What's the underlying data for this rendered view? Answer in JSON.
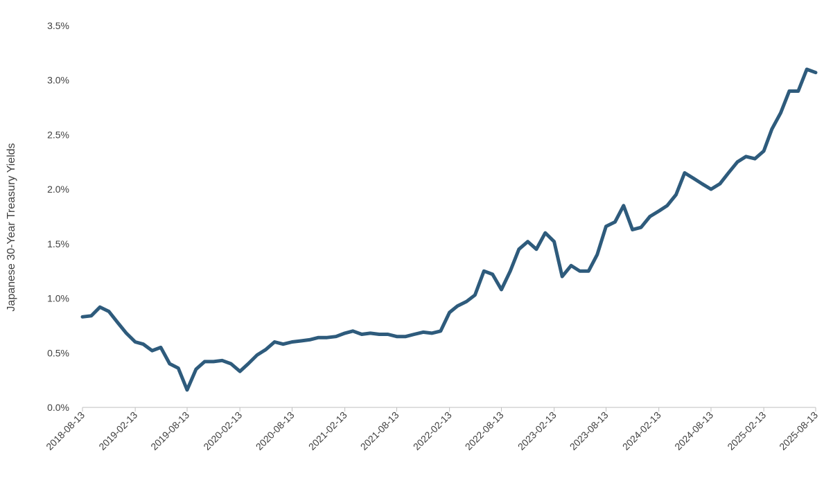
{
  "chart_data": {
    "type": "line",
    "title": "",
    "xlabel": "",
    "ylabel": "Japanese 30-Year Treasury Yields",
    "x_tick_labels": [
      "2018-08-13",
      "2019-02-13",
      "2019-08-13",
      "2020-02-13",
      "2020-08-13",
      "2021-02-13",
      "2021-08-13",
      "2022-02-13",
      "2022-08-13",
      "2023-02-13",
      "2023-08-13",
      "2024-02-13",
      "2024-08-13",
      "2025-02-13",
      "2025-08-13"
    ],
    "y_tick_labels": [
      "0.0%",
      "0.5%",
      "1.0%",
      "1.5%",
      "2.0%",
      "2.5%",
      "3.0%",
      "3.5%"
    ],
    "y_ticks": [
      0,
      0.5,
      1.0,
      1.5,
      2.0,
      2.5,
      3.0,
      3.5
    ],
    "ylim": [
      0,
      3.5
    ],
    "xlim": [
      "2018-08-13",
      "2025-08-13"
    ],
    "grid": false,
    "line_color": "#2e5b7c",
    "series": [
      {
        "x": [
          "2018-08-13",
          "2018-09-13",
          "2018-10-13",
          "2018-11-13",
          "2018-12-13",
          "2019-01-13",
          "2019-02-13",
          "2019-03-13",
          "2019-04-13",
          "2019-05-13",
          "2019-06-13",
          "2019-07-13",
          "2019-08-13",
          "2019-09-13",
          "2019-10-13",
          "2019-11-13",
          "2019-12-13",
          "2020-01-13",
          "2020-02-13",
          "2020-03-13",
          "2020-04-13",
          "2020-05-13",
          "2020-06-13",
          "2020-07-13",
          "2020-08-13",
          "2020-09-13",
          "2020-10-13",
          "2020-11-13",
          "2020-12-13",
          "2021-01-13",
          "2021-02-13",
          "2021-03-13",
          "2021-04-13",
          "2021-05-13",
          "2021-06-13",
          "2021-07-13",
          "2021-08-13",
          "2021-09-13",
          "2021-10-13",
          "2021-11-13",
          "2021-12-13",
          "2022-01-13",
          "2022-02-13",
          "2022-03-13",
          "2022-04-13",
          "2022-05-13",
          "2022-06-13",
          "2022-07-13",
          "2022-08-13",
          "2022-09-13",
          "2022-10-13",
          "2022-11-13",
          "2022-12-13",
          "2023-01-13",
          "2023-02-13",
          "2023-03-13",
          "2023-04-13",
          "2023-05-13",
          "2023-06-13",
          "2023-07-13",
          "2023-08-13",
          "2023-09-13",
          "2023-10-13",
          "2023-11-13",
          "2023-12-13",
          "2024-01-13",
          "2024-02-13",
          "2024-03-13",
          "2024-04-13",
          "2024-05-13",
          "2024-06-13",
          "2024-07-13",
          "2024-08-13",
          "2024-09-13",
          "2024-10-13",
          "2024-11-13",
          "2024-12-13",
          "2025-01-13",
          "2025-02-13",
          "2025-03-13",
          "2025-04-13",
          "2025-05-13",
          "2025-06-13",
          "2025-07-13",
          "2025-08-13"
        ],
        "values": [
          0.83,
          0.84,
          0.92,
          0.88,
          0.78,
          0.68,
          0.6,
          0.58,
          0.52,
          0.55,
          0.4,
          0.36,
          0.16,
          0.35,
          0.42,
          0.42,
          0.43,
          0.4,
          0.33,
          0.4,
          0.48,
          0.53,
          0.6,
          0.58,
          0.6,
          0.61,
          0.62,
          0.64,
          0.64,
          0.65,
          0.68,
          0.7,
          0.67,
          0.68,
          0.67,
          0.67,
          0.65,
          0.65,
          0.67,
          0.69,
          0.68,
          0.7,
          0.87,
          0.93,
          0.97,
          1.03,
          1.25,
          1.22,
          1.08,
          1.25,
          1.45,
          1.52,
          1.45,
          1.6,
          1.52,
          1.2,
          1.3,
          1.25,
          1.25,
          1.4,
          1.66,
          1.7,
          1.85,
          1.63,
          1.65,
          1.75,
          1.8,
          1.85,
          1.95,
          2.15,
          2.1,
          2.05,
          2.0,
          2.05,
          2.15,
          2.25,
          2.3,
          2.28,
          2.35,
          2.55,
          2.7,
          2.9,
          2.9,
          3.1,
          3.07
        ]
      }
    ]
  }
}
